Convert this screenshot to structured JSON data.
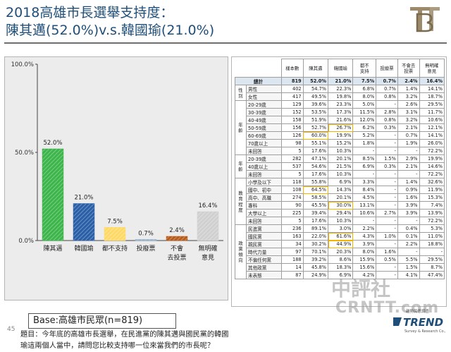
{
  "header": {
    "title_line1": "2018高雄市長選舉支持度：",
    "title_line2": "陳其邁(52.0%)v.s.韓國瑜(21.0%)"
  },
  "question": "題目：今年底的高雄市長選舉，在民進黨的陳其邁與國民黨的韓國瑜這兩個人當中，請問您比較支持哪一位來當我們的市長呢？",
  "base": "Base:高雄市民眾(n=819)",
  "page_number": "45",
  "watermark": {
    "line1": "中評社",
    "line2": "CRNTT.com"
  },
  "trend_logo": {
    "caption": "趨勢民意調查",
    "name": "TREND",
    "subtitle": "Survey & Research Co., Ltd."
  },
  "colors": {
    "title": "#1f4e79",
    "green": "#3cb54a",
    "blue": "#2a5fa8",
    "yellow": "#ffd966",
    "gray": "#c8c8c8",
    "brown": "#b85c1a",
    "highlight": "#f5b400"
  },
  "chart_data": {
    "type": "bar",
    "categories": [
      "陳其邁",
      "韓國瑜",
      "都不支持",
      "投廢票",
      "不會\n去投票",
      "無明確\n意見"
    ],
    "values": [
      52.0,
      21.0,
      7.5,
      0.7,
      2.4,
      16.4
    ],
    "value_labels": [
      "52.0%",
      "21.0%",
      "7.5%",
      "0.7%",
      "2.4%",
      "16.4%"
    ],
    "bar_colors": [
      "#3cb54a",
      "#2a5fa8",
      "#ffd966",
      "#9bb7d4",
      "#b85c1a",
      "#d0d0d0"
    ],
    "ylim": [
      0,
      100
    ],
    "yticks": [
      0,
      50,
      100
    ],
    "ytick_labels": [
      "0.0%",
      "50.0%",
      "100.0%"
    ],
    "grid": false
  },
  "table": {
    "headers": [
      "樣本數",
      "陳其邁",
      "韓國瑜",
      "都不\n支持",
      "投廢票",
      "不會去\n投票",
      "無明確\n意見"
    ],
    "total": {
      "label": "總計",
      "values": [
        "819",
        "52.0%",
        "21.0%",
        "7.5%",
        "0.7%",
        "2.4%",
        "16.4%"
      ]
    },
    "groups": [
      {
        "name": "性別",
        "rows": [
          {
            "label": "男性",
            "values": [
              "402",
              "54.7%",
              "22.3%",
              "6.8%",
              "0.7%",
              "1.4%",
              "14.1%"
            ]
          },
          {
            "label": "女性",
            "values": [
              "417",
              "49.5%",
              "19.8%",
              "8.0%",
              "0.8%",
              "3.2%",
              "18.7%"
            ]
          }
        ]
      },
      {
        "name": "年齡",
        "rows": [
          {
            "label": "20-29歲",
            "values": [
              "129",
              "39.6%",
              "23.3%",
              "5.0%",
              "-",
              "2.6%",
              "29.5%"
            ]
          },
          {
            "label": "30-39歲",
            "values": [
              "152",
              "53.5%",
              "17.3%",
              "11.5%",
              "2.8%",
              "3.1%",
              "11.7%"
            ]
          },
          {
            "label": "40-49歲",
            "values": [
              "158",
              "51.9%",
              "21.6%",
              "12.0%",
              "0.8%",
              "3.2%",
              "10.6%"
            ]
          },
          {
            "label": "50-59歲",
            "values": [
              "156",
              "52.7%",
              "26.7%",
              "6.2%",
              "0.3%",
              "2.1%",
              "12.1%"
            ]
          },
          {
            "label": "60-69歲",
            "values": [
              "126",
              "60.0%",
              "19.9%",
              "5.2%",
              "-",
              "0.7%",
              "14.1%"
            ]
          },
          {
            "label": "70歲以上",
            "values": [
              "98",
              "55.1%",
              "15.2%",
              "1.8%",
              "-",
              "1.9%",
              "26.0%"
            ]
          },
          {
            "label": "未回答",
            "values": [
              "5",
              "17.6%",
              "10.3%",
              "-",
              "-",
              "-",
              "72.2%"
            ]
          }
        ]
      },
      {
        "name": "年齡",
        "rows": [
          {
            "label": "20-39歲",
            "values": [
              "282",
              "47.1%",
              "20.1%",
              "8.5%",
              "1.5%",
              "2.9%",
              "19.9%"
            ]
          },
          {
            "label": "40歲以上",
            "values": [
              "537",
              "54.6%",
              "21.5%",
              "6.9%",
              "0.3%",
              "2.1%",
              "14.6%"
            ]
          },
          {
            "label": "未回答",
            "values": [
              "5",
              "17.6%",
              "10.3%",
              "-",
              "-",
              "-",
              "72.2%"
            ]
          }
        ]
      },
      {
        "name": "教育程度",
        "rows": [
          {
            "label": "小學及以下",
            "values": [
              "118",
              "55.8%",
              "6.9%",
              "3.3%",
              "-",
              "1.4%",
              "32.6%"
            ]
          },
          {
            "label": "國中、初中",
            "values": [
              "108",
              "64.5%",
              "14.3%",
              "8.4%",
              "-",
              "0.9%",
              "11.9%"
            ]
          },
          {
            "label": "高中、高職",
            "values": [
              "274",
              "58.5%",
              "20.1%",
              "4.5%",
              "-",
              "1.6%",
              "15.3%"
            ]
          },
          {
            "label": "專科",
            "values": [
              "90",
              "45.5%",
              "30.0%",
              "13.1%",
              "-",
              "3.9%",
              "7.4%"
            ]
          },
          {
            "label": "大學以上",
            "values": [
              "225",
              "39.4%",
              "29.4%",
              "10.6%",
              "2.7%",
              "3.9%",
              "13.9%"
            ]
          },
          {
            "label": "未回答",
            "values": [
              "5",
              "17.6%",
              "10.3%",
              "-",
              "-",
              "-",
              "72.2%"
            ]
          }
        ]
      },
      {
        "name": "政黨傾向",
        "rows": [
          {
            "label": "民進黨",
            "values": [
              "236",
              "89.1%",
              "3.0%",
              "2.2%",
              "-",
              "0.4%",
              "5.3%"
            ]
          },
          {
            "label": "國民黨",
            "values": [
              "163",
              "22.0%",
              "61.6%",
              "4.3%",
              "1.0%",
              "0.1%",
              "11.0%"
            ]
          },
          {
            "label": "親民黨",
            "values": [
              "34",
              "30.2%",
              "44.9%",
              "3.9%",
              "-",
              "2.2%",
              "18.8%"
            ]
          },
          {
            "label": "時代力量",
            "values": [
              "97",
              "70.1%",
              "20.3%",
              "8.0%",
              "1.6%",
              "-",
              "-"
            ]
          },
          {
            "label": "不偏任何黨",
            "values": [
              "188",
              "39.2%",
              "8.6%",
              "15.9%",
              "0.5%",
              "5.5%",
              "29.5%"
            ]
          },
          {
            "label": "其他政黨",
            "values": [
              "14",
              "45.8%",
              "18.3%",
              "15.6%",
              "-",
              "1.5%",
              "8.7%"
            ]
          },
          {
            "label": "未表態",
            "values": [
              "87",
              "24.9%",
              "6.9%",
              "4.2%",
              "-",
              "4.1%",
              "47.4%"
            ]
          }
        ]
      }
    ],
    "highlights": [
      {
        "group": 1,
        "row": 3,
        "col": 2
      },
      {
        "group": 1,
        "row": 4,
        "col": 1
      },
      {
        "group": 3,
        "row": 1,
        "col": 1
      },
      {
        "group": 3,
        "row": 3,
        "col": 2
      },
      {
        "group": 4,
        "row": 1,
        "col": 2
      },
      {
        "group": 4,
        "row": 2,
        "col": 2
      }
    ]
  }
}
